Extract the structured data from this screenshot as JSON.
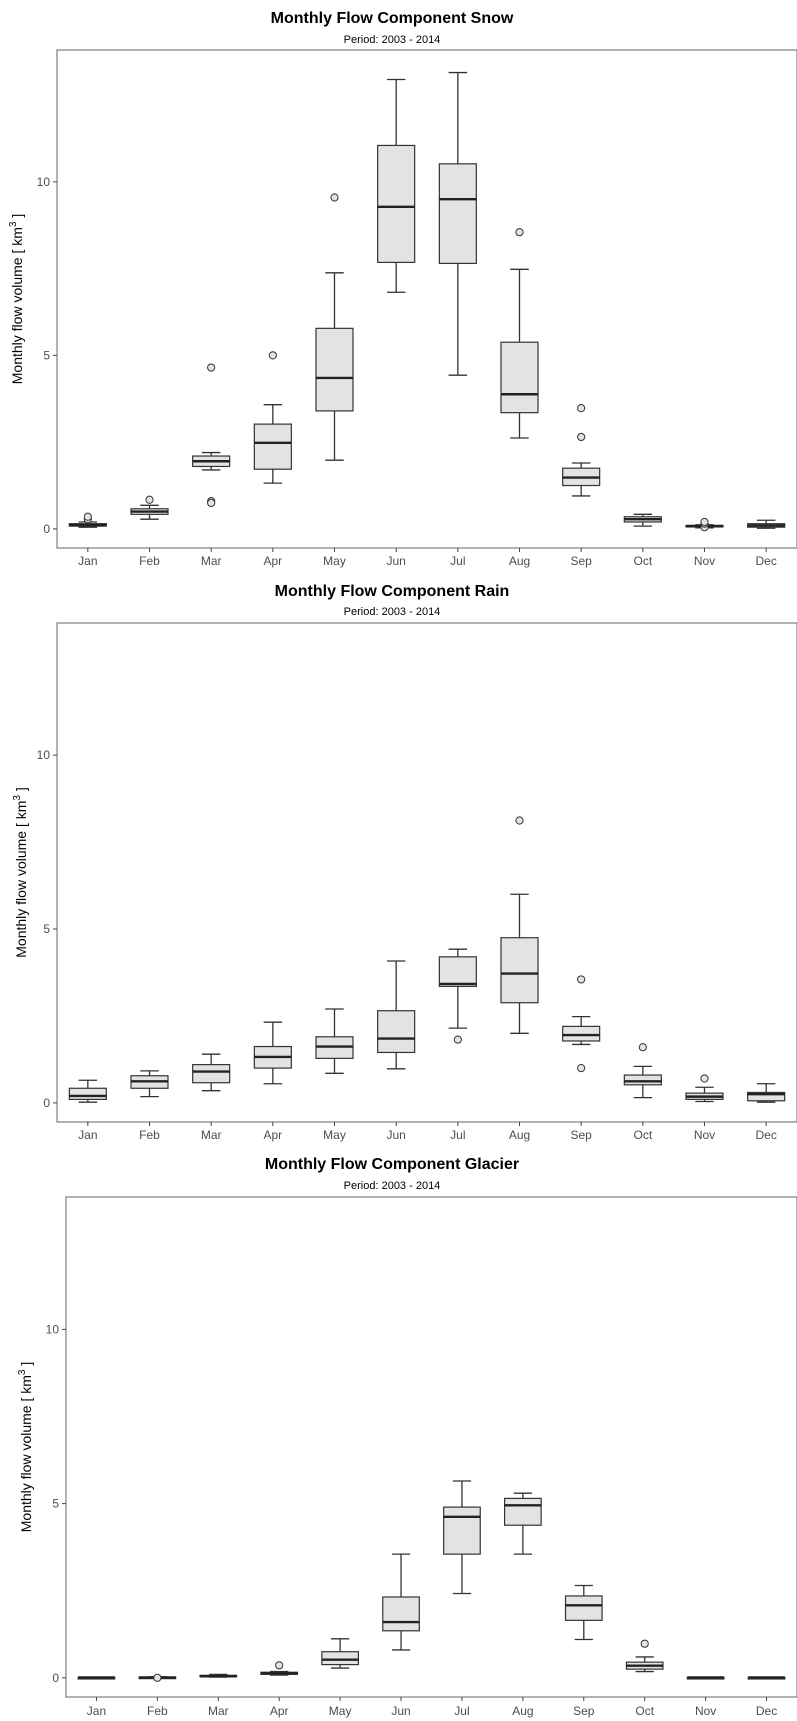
{
  "chart_data": [
    {
      "type": "box",
      "title": "Monthly Flow Component Snow",
      "subtitle": "Period: 2003 - 2014",
      "ylabel": "Monthly flow volume",
      "yunit": "km",
      "yunit_sup": "3",
      "categories": [
        "Jan",
        "Feb",
        "Mar",
        "Apr",
        "May",
        "Jun",
        "Jul",
        "Aug",
        "Sep",
        "Oct",
        "Nov",
        "Dec"
      ],
      "yticks": [
        0,
        5,
        10
      ],
      "ylim": [
        -0.55,
        13.8
      ],
      "boxes": [
        {
          "low": 0.05,
          "q1": 0.08,
          "median": 0.12,
          "q3": 0.15,
          "high": 0.2,
          "outliers": [
            0.28,
            0.35
          ]
        },
        {
          "low": 0.28,
          "q1": 0.42,
          "median": 0.5,
          "q3": 0.58,
          "high": 0.68,
          "outliers": [
            0.84
          ]
        },
        {
          "low": 1.7,
          "q1": 1.8,
          "median": 1.95,
          "q3": 2.1,
          "high": 2.2,
          "outliers": [
            0.8,
            0.75,
            4.65
          ]
        },
        {
          "low": 1.32,
          "q1": 1.72,
          "median": 2.48,
          "q3": 3.02,
          "high": 3.58,
          "outliers": [
            5.0
          ]
        },
        {
          "low": 1.98,
          "q1": 3.4,
          "median": 4.35,
          "q3": 5.78,
          "high": 7.38,
          "outliers": [
            9.55
          ]
        },
        {
          "low": 6.82,
          "q1": 7.68,
          "median": 9.28,
          "q3": 11.05,
          "high": 12.95,
          "outliers": []
        },
        {
          "low": 4.43,
          "q1": 7.65,
          "median": 9.5,
          "q3": 10.52,
          "high": 13.15,
          "outliers": []
        },
        {
          "low": 2.62,
          "q1": 3.35,
          "median": 3.88,
          "q3": 5.38,
          "high": 7.48,
          "outliers": [
            8.55
          ]
        },
        {
          "low": 0.95,
          "q1": 1.25,
          "median": 1.48,
          "q3": 1.75,
          "high": 1.9,
          "outliers": [
            2.65,
            3.48
          ]
        },
        {
          "low": 0.08,
          "q1": 0.2,
          "median": 0.28,
          "q3": 0.35,
          "high": 0.42,
          "outliers": []
        },
        {
          "low": 0.03,
          "q1": 0.06,
          "median": 0.08,
          "q3": 0.1,
          "high": 0.12,
          "outliers": [
            0.05,
            0.15,
            0.2
          ]
        },
        {
          "low": 0.02,
          "q1": 0.05,
          "median": 0.1,
          "q3": 0.15,
          "high": 0.25,
          "outliers": []
        }
      ]
    },
    {
      "type": "box",
      "title": "Monthly Flow Component Rain",
      "subtitle": "Period: 2003 - 2014",
      "ylabel": "Monthly flow volume",
      "yunit": "km",
      "yunit_sup": "3",
      "categories": [
        "Jan",
        "Feb",
        "Mar",
        "Apr",
        "May",
        "Jun",
        "Jul",
        "Aug",
        "Sep",
        "Oct",
        "Nov",
        "Dec"
      ],
      "yticks": [
        0,
        5,
        10
      ],
      "ylim": [
        -0.55,
        13.8
      ],
      "boxes": [
        {
          "low": 0.02,
          "q1": 0.1,
          "median": 0.2,
          "q3": 0.42,
          "high": 0.65,
          "outliers": []
        },
        {
          "low": 0.18,
          "q1": 0.42,
          "median": 0.62,
          "q3": 0.78,
          "high": 0.92,
          "outliers": []
        },
        {
          "low": 0.35,
          "q1": 0.58,
          "median": 0.9,
          "q3": 1.1,
          "high": 1.4,
          "outliers": []
        },
        {
          "low": 0.55,
          "q1": 1.0,
          "median": 1.32,
          "q3": 1.62,
          "high": 2.32,
          "outliers": []
        },
        {
          "low": 0.85,
          "q1": 1.28,
          "median": 1.62,
          "q3": 1.9,
          "high": 2.7,
          "outliers": []
        },
        {
          "low": 0.98,
          "q1": 1.45,
          "median": 1.85,
          "q3": 2.65,
          "high": 4.08,
          "outliers": []
        },
        {
          "low": 2.15,
          "q1": 3.35,
          "median": 3.42,
          "q3": 4.2,
          "high": 4.42,
          "outliers": [
            1.82
          ]
        },
        {
          "low": 2.0,
          "q1": 2.88,
          "median": 3.72,
          "q3": 4.75,
          "high": 6.0,
          "outliers": [
            8.12
          ]
        },
        {
          "low": 1.68,
          "q1": 1.78,
          "median": 1.95,
          "q3": 2.2,
          "high": 2.48,
          "outliers": [
            1.0,
            3.55
          ]
        },
        {
          "low": 0.15,
          "q1": 0.52,
          "median": 0.62,
          "q3": 0.8,
          "high": 1.05,
          "outliers": [
            1.6
          ]
        },
        {
          "low": 0.04,
          "q1": 0.1,
          "median": 0.18,
          "q3": 0.28,
          "high": 0.45,
          "outliers": [
            0.7
          ]
        },
        {
          "low": 0.02,
          "q1": 0.06,
          "median": 0.25,
          "q3": 0.3,
          "high": 0.55,
          "outliers": []
        }
      ]
    },
    {
      "type": "box",
      "title": "Monthly Flow Component Glacier",
      "subtitle": "Period: 2003 - 2014",
      "ylabel": "Monthly flow volume",
      "yunit": "km",
      "yunit_sup": "3",
      "categories": [
        "Jan",
        "Feb",
        "Mar",
        "Apr",
        "May",
        "Jun",
        "Jul",
        "Aug",
        "Sep",
        "Oct",
        "Nov",
        "Dec"
      ],
      "yticks": [
        0,
        5,
        10
      ],
      "ylim": [
        -0.55,
        13.8
      ],
      "boxes": [
        {
          "low": 0.0,
          "q1": 0.0,
          "median": 0.01,
          "q3": 0.01,
          "high": 0.02,
          "outliers": []
        },
        {
          "low": 0.0,
          "q1": 0.01,
          "median": 0.01,
          "q3": 0.02,
          "high": 0.03,
          "outliers": [
            0.0
          ]
        },
        {
          "low": 0.02,
          "q1": 0.03,
          "median": 0.05,
          "q3": 0.07,
          "high": 0.1,
          "outliers": []
        },
        {
          "low": 0.08,
          "q1": 0.1,
          "median": 0.13,
          "q3": 0.16,
          "high": 0.18,
          "outliers": [
            0.36
          ]
        },
        {
          "low": 0.28,
          "q1": 0.38,
          "median": 0.52,
          "q3": 0.75,
          "high": 1.12,
          "outliers": []
        },
        {
          "low": 0.8,
          "q1": 1.35,
          "median": 1.6,
          "q3": 2.32,
          "high": 3.55,
          "outliers": []
        },
        {
          "low": 2.42,
          "q1": 3.55,
          "median": 4.62,
          "q3": 4.9,
          "high": 5.65,
          "outliers": []
        },
        {
          "low": 3.55,
          "q1": 4.38,
          "median": 4.95,
          "q3": 5.15,
          "high": 5.3,
          "outliers": []
        },
        {
          "low": 1.1,
          "q1": 1.65,
          "median": 2.08,
          "q3": 2.35,
          "high": 2.65,
          "outliers": []
        },
        {
          "low": 0.18,
          "q1": 0.25,
          "median": 0.35,
          "q3": 0.45,
          "high": 0.6,
          "outliers": [
            0.98
          ]
        },
        {
          "low": 0.0,
          "q1": 0.0,
          "median": 0.01,
          "q3": 0.01,
          "high": 0.01,
          "outliers": []
        },
        {
          "low": 0.0,
          "q1": 0.0,
          "median": 0.01,
          "q3": 0.01,
          "high": 0.02,
          "outliers": []
        }
      ]
    }
  ]
}
